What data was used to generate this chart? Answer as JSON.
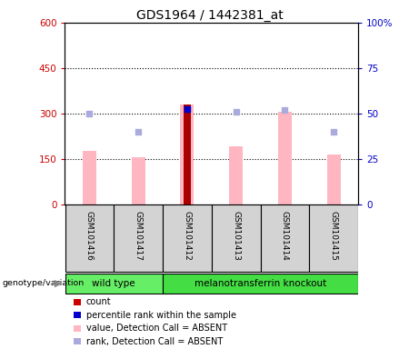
{
  "title": "GDS1964 / 1442381_at",
  "samples": [
    "GSM101416",
    "GSM101417",
    "GSM101412",
    "GSM101413",
    "GSM101414",
    "GSM101415"
  ],
  "pink_bar_heights": [
    175,
    155,
    330,
    190,
    305,
    165
  ],
  "blue_square_values": [
    300,
    240,
    315,
    305,
    310,
    240
  ],
  "red_bar_height": 330,
  "red_bar_index": 2,
  "blue_on_red_value": 315,
  "ylim_left": [
    0,
    600
  ],
  "ylim_right": [
    0,
    100
  ],
  "yticks_left": [
    0,
    150,
    300,
    450,
    600
  ],
  "ytick_labels_left": [
    "0",
    "150",
    "300",
    "450",
    "600"
  ],
  "yticks_right": [
    0,
    25,
    50,
    75,
    100
  ],
  "ytick_labels_right": [
    "0",
    "25",
    "50",
    "75",
    "100%"
  ],
  "hlines": [
    150,
    300,
    450
  ],
  "genotype_groups": [
    {
      "label": "wild type",
      "indices": [
        0,
        1
      ],
      "color": "#66EE66"
    },
    {
      "label": "melanotransferrin knockout",
      "indices": [
        2,
        3,
        4,
        5
      ],
      "color": "#44DD44"
    }
  ],
  "legend_items": [
    {
      "label": "count",
      "color": "#CC0000"
    },
    {
      "label": "percentile rank within the sample",
      "color": "#0000CC"
    },
    {
      "label": "value, Detection Call = ABSENT",
      "color": "#FFB6C1"
    },
    {
      "label": "rank, Detection Call = ABSENT",
      "color": "#AAAADD"
    }
  ],
  "sample_label_bg": "#D3D3D3",
  "pink_bar_color": "#FFB6C1",
  "blue_square_color": "#AAAADD",
  "red_bar_color": "#AA0000",
  "blue_on_red_color": "#0000CC",
  "left_tick_color": "#CC0000",
  "right_tick_color": "#0000CC",
  "bar_width": 0.28
}
